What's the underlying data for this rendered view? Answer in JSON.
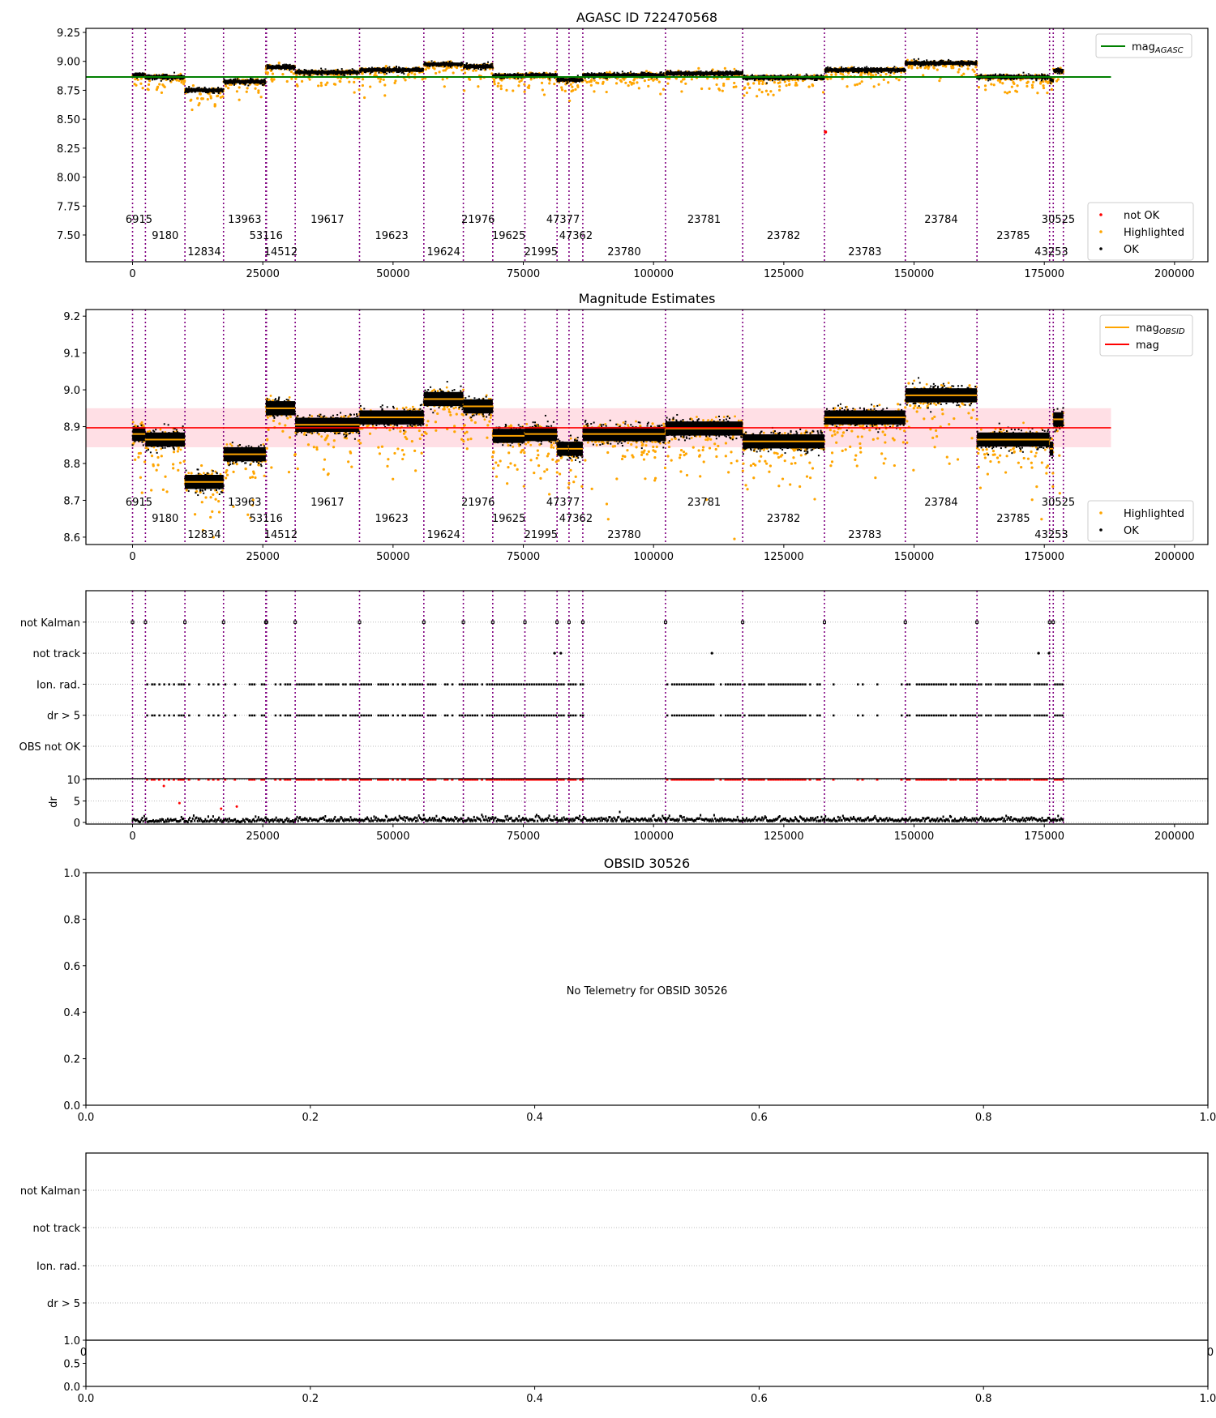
{
  "chart_data": [
    {
      "type": "scatter",
      "title": "AGASC ID 722470568",
      "xlabel": "",
      "ylabel": "",
      "xlim": [
        -8950,
        206400
      ],
      "ylim": [
        7.269,
        9.285
      ],
      "xticks": [
        0,
        25000,
        50000,
        75000,
        100000,
        125000,
        150000,
        175000,
        200000
      ],
      "yticks": [
        "7.50",
        "7.75",
        "8.00",
        "8.25",
        "8.50",
        "8.75",
        "9.00",
        "9.25"
      ],
      "mag_agasc": 8.865,
      "mag_agasc_xrange": [
        -8950,
        187800
      ],
      "legend_top": [
        {
          "label": "mag",
          "sub": "AGASC",
          "color": "#008000"
        }
      ],
      "legend_bottom": [
        {
          "label": "not OK",
          "color": "#ff0000"
        },
        {
          "label": "Highlighted",
          "color": "#ffa500"
        },
        {
          "label": "OK",
          "color": "#000000"
        }
      ],
      "not_ok_points": [
        [
          133000,
          8.39
        ]
      ],
      "grid": false
    },
    {
      "type": "scatter",
      "title": "Magnitude Estimates",
      "xlim": [
        -8950,
        206400
      ],
      "ylim": [
        8.58,
        9.218
      ],
      "xticks": [
        0,
        25000,
        50000,
        75000,
        100000,
        125000,
        150000,
        175000,
        200000
      ],
      "yticks": [
        "8.6",
        "8.7",
        "8.8",
        "8.9",
        "9.0",
        "9.1",
        "9.2"
      ],
      "mag": 8.897,
      "mag_band": [
        8.844,
        8.95
      ],
      "mag_xrange": [
        -8950,
        187800
      ],
      "legend_top": [
        {
          "label": "mag",
          "sub": "OBSID",
          "color": "#ffa500"
        },
        {
          "label": "mag",
          "sub": "",
          "color": "#ff0000"
        }
      ],
      "legend_bottom": [
        {
          "label": "Highlighted",
          "color": "#ffa500"
        },
        {
          "label": "OK",
          "color": "#000000"
        }
      ],
      "grid": false
    },
    {
      "type": "scatter",
      "title": "",
      "flag_categories": [
        "OBS not OK",
        "dr > 5",
        "Ion. rad.",
        "not track",
        "not Kalman"
      ],
      "dr_ylabel": "dr",
      "dr_yticks": [
        "0",
        "5",
        "10"
      ],
      "dr_clip": 10,
      "not_track_x": [
        81000,
        82200,
        111200,
        173900,
        175900
      ],
      "xticks": [
        0,
        25000,
        50000,
        75000,
        100000,
        125000,
        150000,
        175000,
        200000
      ]
    },
    {
      "type": "scatter",
      "title": "OBSID 30526",
      "annotation": "No Telemetry for OBSID 30526",
      "xticks": [
        "0.0",
        "0.2",
        "0.4",
        "0.6",
        "0.8",
        "1.0"
      ],
      "yticks": [
        "0.0",
        "0.2",
        "0.4",
        "0.6",
        "0.8",
        "1.0"
      ]
    },
    {
      "type": "scatter",
      "title": "",
      "flag_categories": [
        "dr > 5",
        "Ion. rad.",
        "not track",
        "not Kalman"
      ],
      "xticks": [
        "0.0",
        "0.2",
        "0.4",
        "0.6",
        "0.8",
        "1.0"
      ],
      "sub_yticks": [
        "0.0",
        "0.5",
        "1.0"
      ],
      "clipped_xticks": [
        "0",
        "0"
      ]
    }
  ],
  "segments": [
    {
      "obsid": "6915",
      "start": 0,
      "end": 2469,
      "mean": 8.88,
      "row": 0,
      "ion": 0.0
    },
    {
      "obsid": "9180",
      "start": 2469,
      "end": 10053,
      "mean": 8.865,
      "row": 1,
      "ion": 0.5
    },
    {
      "obsid": "12834",
      "start": 10053,
      "end": 17460,
      "mean": 8.75,
      "row": 2,
      "ion": 0.4
    },
    {
      "obsid": "13963",
      "start": 17460,
      "end": 25573,
      "mean": 8.825,
      "row": 0,
      "ion": 0.35
    },
    {
      "obsid": "53116",
      "start": 25573,
      "end": 25700,
      "mean": 8.95,
      "row": 1,
      "ion": 0.3
    },
    {
      "obsid": "14512",
      "start": 25700,
      "end": 31217,
      "mean": 8.95,
      "row": 2,
      "ion": 0.35
    },
    {
      "obsid": "19617",
      "start": 31217,
      "end": 43563,
      "mean": 8.905,
      "row": 0,
      "ion": 0.9
    },
    {
      "obsid": "19623",
      "start": 43563,
      "end": 55908,
      "mean": 8.925,
      "row": 1,
      "ion": 0.9
    },
    {
      "obsid": "19624",
      "start": 55908,
      "end": 63492,
      "mean": 8.975,
      "row": 2,
      "ion": 0.8
    },
    {
      "obsid": "21976",
      "start": 63492,
      "end": 69136,
      "mean": 8.955,
      "row": 0,
      "ion": 0.9
    },
    {
      "obsid": "19625",
      "start": 69136,
      "end": 75309,
      "mean": 8.875,
      "row": 1,
      "ion": 0.9
    },
    {
      "obsid": "21995",
      "start": 75309,
      "end": 81481,
      "mean": 8.88,
      "row": 2,
      "ion": 0.9
    },
    {
      "obsid": "47377",
      "start": 81481,
      "end": 83774,
      "mean": 8.84,
      "row": 0,
      "ion": 0.9
    },
    {
      "obsid": "47362",
      "start": 83774,
      "end": 86420,
      "mean": 8.84,
      "row": 1,
      "ion": 0.9
    },
    {
      "obsid": "23780",
      "start": 86420,
      "end": 102293,
      "mean": 8.88,
      "row": 2,
      "ion": 0.0
    },
    {
      "obsid": "23781",
      "start": 102293,
      "end": 117108,
      "mean": 8.895,
      "row": 0,
      "ion": 0.85
    },
    {
      "obsid": "23782",
      "start": 117108,
      "end": 132804,
      "mean": 8.86,
      "row": 1,
      "ion": 0.8
    },
    {
      "obsid": "23783",
      "start": 132804,
      "end": 148325,
      "mean": 8.925,
      "row": 2,
      "ion": 0.05
    },
    {
      "obsid": "23784",
      "start": 148325,
      "end": 162081,
      "mean": 8.985,
      "row": 0,
      "ion": 0.9
    },
    {
      "obsid": "23785",
      "start": 162081,
      "end": 176014,
      "mean": 8.865,
      "row": 1,
      "ion": 0.85
    },
    {
      "obsid": "43253",
      "start": 176014,
      "end": 176720,
      "mean": 8.84,
      "row": 2,
      "ion": 0.9
    },
    {
      "obsid": "30525",
      "start": 176720,
      "end": 178660,
      "mean": 8.92,
      "row": 0,
      "ion": 0.9
    }
  ],
  "colors": {
    "ok": "#000000",
    "highlighted": "#ffa500",
    "not_ok": "#ff0000",
    "obsid_line": "#800080",
    "agasc": "#008000",
    "mag": "#ff0000",
    "band": "#ffc0cb"
  }
}
